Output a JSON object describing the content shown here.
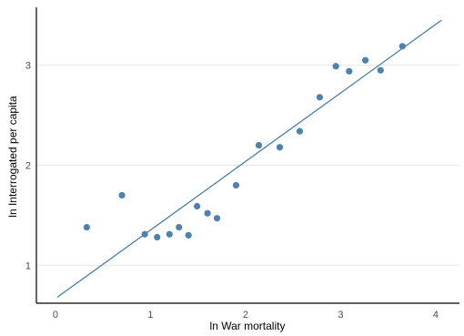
{
  "chart_data": {
    "type": "scatter",
    "title": "",
    "xlabel": "ln War mortality",
    "ylabel": "ln Interrogated per capita",
    "xlim": [
      -0.2,
      4.25
    ],
    "ylim": [
      0.62,
      3.58
    ],
    "xticks": [
      0,
      1,
      2,
      3,
      4
    ],
    "yticks": [
      1,
      2,
      3
    ],
    "xtick_labels": [
      "0",
      "1",
      "2",
      "3",
      "4"
    ],
    "ytick_labels": [
      "1",
      "2",
      "3"
    ],
    "grid": "horizontal",
    "point_color": "#4e81b0",
    "line_color": "#3a78a8",
    "points": [
      {
        "x": 0.33,
        "y": 1.38
      },
      {
        "x": 0.7,
        "y": 1.7
      },
      {
        "x": 0.94,
        "y": 1.31
      },
      {
        "x": 1.07,
        "y": 1.28
      },
      {
        "x": 1.2,
        "y": 1.31
      },
      {
        "x": 1.3,
        "y": 1.38
      },
      {
        "x": 1.4,
        "y": 1.3
      },
      {
        "x": 1.49,
        "y": 1.59
      },
      {
        "x": 1.6,
        "y": 1.52
      },
      {
        "x": 1.7,
        "y": 1.47
      },
      {
        "x": 1.9,
        "y": 1.8
      },
      {
        "x": 2.14,
        "y": 2.2
      },
      {
        "x": 2.36,
        "y": 2.18
      },
      {
        "x": 2.57,
        "y": 2.34
      },
      {
        "x": 2.78,
        "y": 2.68
      },
      {
        "x": 2.95,
        "y": 2.99
      },
      {
        "x": 3.09,
        "y": 2.94
      },
      {
        "x": 3.26,
        "y": 3.05
      },
      {
        "x": 3.42,
        "y": 2.95
      },
      {
        "x": 3.65,
        "y": 3.19
      }
    ],
    "fit_line": {
      "x": [
        0.02,
        4.06
      ],
      "y": [
        0.68,
        3.45
      ]
    }
  }
}
